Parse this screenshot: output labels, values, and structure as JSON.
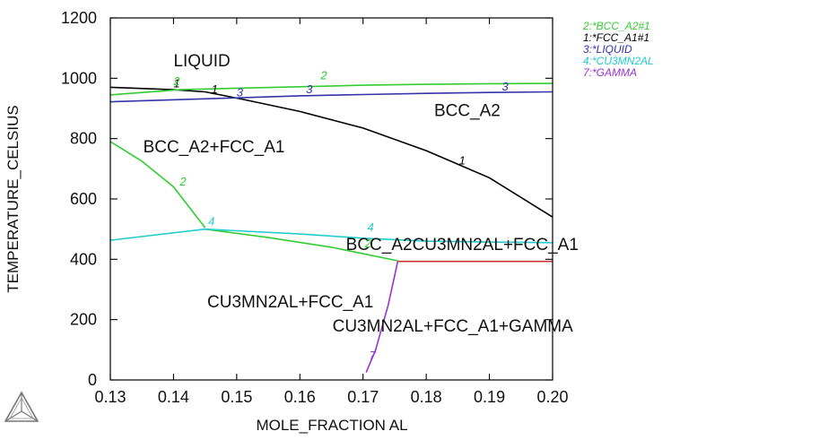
{
  "chart_data": {
    "type": "line",
    "xlabel": "MOLE_FRACTION AL",
    "ylabel": "TEMPERATURE_CELSIUS",
    "xlim": [
      0.13,
      0.2
    ],
    "ylim": [
      0,
      1200
    ],
    "x_ticks": [
      "0.13",
      "0.14",
      "0.15",
      "0.16",
      "0.17",
      "0.18",
      "0.19",
      "0.20"
    ],
    "y_ticks": [
      "0",
      "200",
      "400",
      "600",
      "800",
      "1000",
      "1200"
    ],
    "grid": false,
    "legend_position": "top-right",
    "legend": [
      {
        "text": "2:*BCC_A2#1",
        "color": "#33cc33"
      },
      {
        "text": "1:*FCC_A1#1",
        "color": "#000000"
      },
      {
        "text": "3:*LIQUID",
        "color": "#3333aa"
      },
      {
        "text": "4:*CU3MN2AL",
        "color": "#22cccc"
      },
      {
        "text": "7:*GAMMA",
        "color": "#9933cc"
      }
    ],
    "series": [
      {
        "key": "1",
        "color": "#000000",
        "segments": [
          [
            [
              0.13,
              970
            ],
            [
              0.14,
              962
            ],
            [
              0.145,
              955
            ],
            [
              0.151,
              930
            ],
            [
              0.16,
              890
            ],
            [
              0.17,
              835
            ],
            [
              0.18,
              760
            ],
            [
              0.19,
              670
            ],
            [
              0.2,
              540
            ]
          ]
        ]
      },
      {
        "key": "2",
        "color": "#33cc33",
        "segments": [
          [
            [
              0.13,
              945
            ],
            [
              0.141,
              962
            ],
            [
              0.15,
              967
            ],
            [
              0.16,
              972
            ],
            [
              0.17,
              977
            ],
            [
              0.18,
              980
            ],
            [
              0.19,
              982
            ],
            [
              0.2,
              983
            ]
          ],
          [
            [
              0.13,
              790
            ],
            [
              0.135,
              725
            ],
            [
              0.14,
              640
            ],
            [
              0.145,
              505
            ]
          ],
          [
            [
              0.145,
              500
            ],
            [
              0.155,
              472
            ],
            [
              0.165,
              440
            ],
            [
              0.1755,
              395
            ]
          ]
        ]
      },
      {
        "key": "3",
        "color": "#3333aa",
        "segments": [
          [
            [
              0.13,
              922
            ],
            [
              0.15,
              935
            ],
            [
              0.16,
              942
            ],
            [
              0.17,
              946
            ],
            [
              0.18,
              950
            ],
            [
              0.19,
              953
            ],
            [
              0.2,
              955
            ]
          ]
        ]
      },
      {
        "key": "4",
        "color": "#22cccc",
        "segments": [
          [
            [
              0.13,
              463
            ],
            [
              0.145,
              500
            ],
            [
              0.16,
              484
            ],
            [
              0.17,
              470
            ],
            [
              0.18,
              460
            ],
            [
              0.19,
              457
            ],
            [
              0.2,
              455
            ]
          ]
        ]
      },
      {
        "key": "7",
        "color": "#9933cc",
        "segments": [
          [
            [
              0.1755,
              393
            ],
            [
              0.174,
              250
            ],
            [
              0.172,
              100
            ],
            [
              0.1705,
              25
            ]
          ]
        ]
      },
      {
        "key": "",
        "color": "#cc3333",
        "segments": [
          [
            [
              0.1755,
              393
            ],
            [
              0.2,
              393
            ]
          ]
        ]
      }
    ],
    "curve_labels": [
      {
        "text": "1",
        "x": 0.1405,
        "y": 970,
        "color": "#000000"
      },
      {
        "text": "1",
        "x": 0.1465,
        "y": 950,
        "color": "#000000"
      },
      {
        "text": "1",
        "x": 0.1857,
        "y": 715,
        "color": "#000000"
      },
      {
        "text": "2",
        "x": 0.1405,
        "y": 977,
        "color": "#33cc33"
      },
      {
        "text": "2",
        "x": 0.1638,
        "y": 997,
        "color": "#33cc33"
      },
      {
        "text": "2",
        "x": 0.1415,
        "y": 645,
        "color": "#33cc33"
      },
      {
        "text": "2",
        "x": 0.1708,
        "y": 440,
        "color": "#33cc33"
      },
      {
        "text": "3",
        "x": 0.1505,
        "y": 940,
        "color": "#3333aa"
      },
      {
        "text": "3",
        "x": 0.1615,
        "y": 950,
        "color": "#3333aa"
      },
      {
        "text": "3",
        "x": 0.1925,
        "y": 960,
        "color": "#3333aa"
      },
      {
        "text": "4",
        "x": 0.146,
        "y": 512,
        "color": "#22cccc"
      },
      {
        "text": "4",
        "x": 0.1712,
        "y": 493,
        "color": "#22cccc"
      },
      {
        "text": "7",
        "x": 0.1715,
        "y": 68,
        "color": "#9933cc"
      }
    ],
    "region_labels": [
      {
        "text": "LIQUID",
        "x": 0.1445,
        "y": 1040
      },
      {
        "text": "BCC_A2",
        "x": 0.1865,
        "y": 875
      },
      {
        "text": "BCC_A2+FCC_A1",
        "x": 0.1464,
        "y": 755
      },
      {
        "text": "BCC_A2CU3MN2AL+FCC_A1",
        "x": 0.1857,
        "y": 430
      },
      {
        "text": "CU3MN2AL+FCC_A1",
        "x": 0.1585,
        "y": 240
      },
      {
        "text": "CU3MN2AL+FCC_A1+GAMMA",
        "x": 0.1842,
        "y": 160
      }
    ]
  }
}
